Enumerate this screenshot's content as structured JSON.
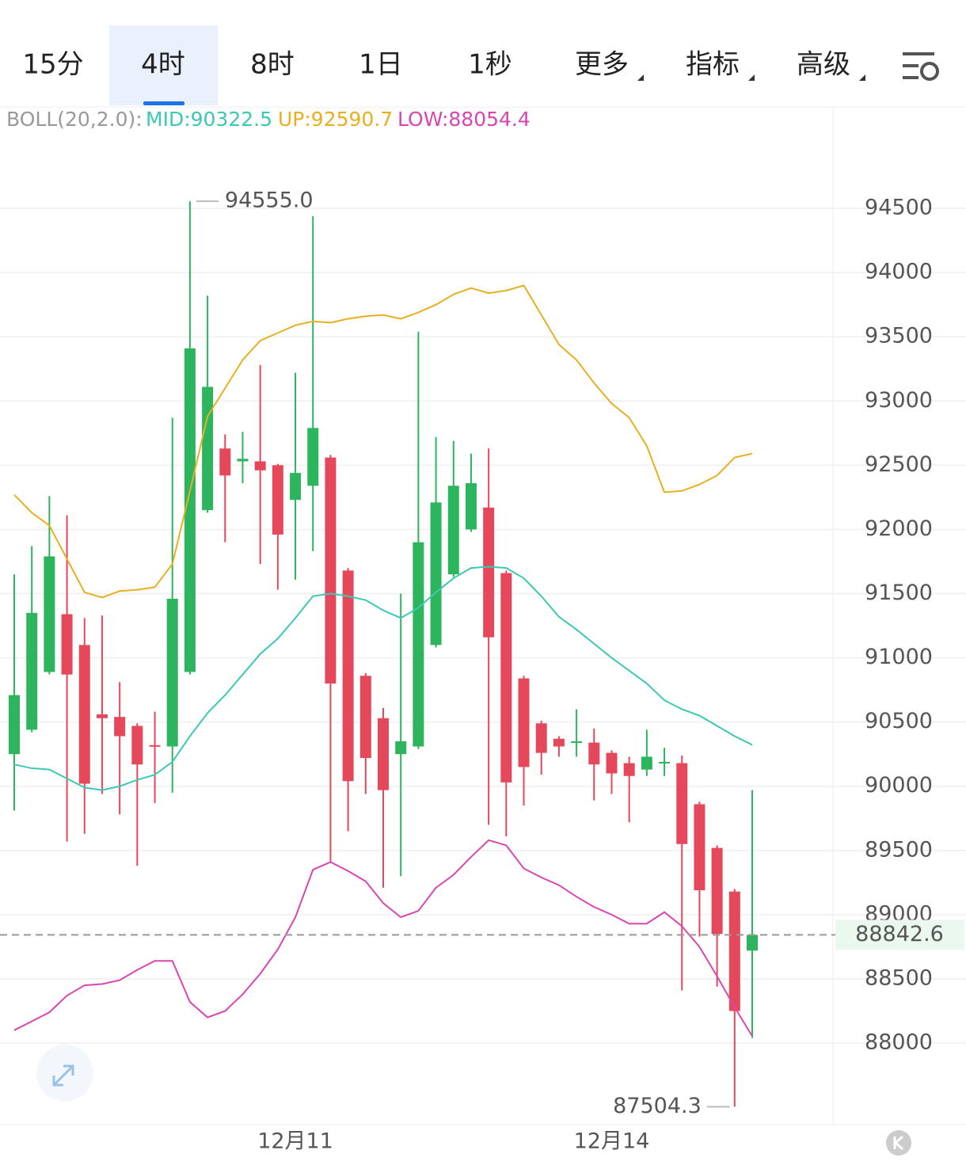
{
  "tabs": [
    "15分",
    "4时",
    "8时",
    "1日",
    "1秒",
    "更多",
    "指标",
    "高级"
  ],
  "active_tab": 1,
  "boll_legend": {
    "name": "BOLL(20,2.0):",
    "mid": "MID:90322.5",
    "up": "UP:92590.7",
    "low": "LOW:88054.4"
  },
  "chart_data": {
    "type": "candlestick",
    "categories": [
      null,
      null,
      null,
      null,
      null,
      null,
      null,
      null,
      null,
      null,
      null,
      null,
      null,
      null,
      null,
      null,
      "12月11",
      null,
      null,
      null,
      null,
      null,
      null,
      null,
      null,
      null,
      null,
      null,
      null,
      null,
      null,
      null,
      null,
      null,
      "12月14",
      null,
      null,
      null,
      null,
      null,
      null,
      null,
      null
    ],
    "open": [
      90250,
      90440,
      90890,
      91340,
      91100,
      90560,
      90540,
      90470,
      90320,
      90310,
      90890,
      92150,
      92630,
      92530,
      92530,
      92500,
      92230,
      92340,
      92560,
      91680,
      90860,
      90530,
      90250,
      90310,
      91100,
      91650,
      92000,
      92170,
      91660,
      90840,
      90490,
      90370,
      90340,
      90340,
      90260,
      90180,
      90130,
      90180,
      90180,
      89860,
      89520,
      89180,
      88720
    ],
    "high": [
      91650,
      91870,
      92260,
      92110,
      91310,
      91330,
      90810,
      90490,
      90580,
      92870,
      94555,
      93820,
      92740,
      92760,
      93280,
      92510,
      93220,
      94440,
      92580,
      91700,
      90880,
      90610,
      91500,
      93540,
      92720,
      92690,
      92590,
      92630,
      91680,
      90860,
      90510,
      90390,
      90600,
      90450,
      90280,
      90230,
      90440,
      90300,
      90240,
      89880,
      89540,
      89200,
      89970
    ],
    "low": [
      89810,
      90420,
      90870,
      89570,
      89630,
      89940,
      89780,
      89380,
      89870,
      89950,
      90870,
      92130,
      91900,
      92360,
      91730,
      91530,
      91610,
      91830,
      89410,
      89650,
      89940,
      89210,
      89300,
      90290,
      91080,
      91630,
      91980,
      89700,
      89610,
      89850,
      90090,
      90230,
      90230,
      89890,
      89940,
      89720,
      90080,
      90080,
      88410,
      88830,
      88440,
      87504.3,
      88040
    ],
    "close": [
      90710,
      91350,
      91790,
      90870,
      90020,
      90530,
      90390,
      90170,
      90310,
      91460,
      93410,
      93110,
      92420,
      92550,
      92460,
      91960,
      92440,
      92790,
      90800,
      90040,
      90220,
      89970,
      90350,
      91900,
      92210,
      92340,
      92360,
      91160,
      90030,
      90150,
      90260,
      90310,
      90350,
      90170,
      90100,
      90080,
      90230,
      90190,
      89550,
      89190,
      88850,
      88250,
      88842.6
    ],
    "up_color": "#2db55d",
    "down_color": "#e5485a",
    "series": [
      {
        "name": "UP",
        "color": "#e8b020",
        "values": [
          92270,
          92130,
          92030,
          91770,
          91510,
          91470,
          91520,
          91530,
          91550,
          91730,
          92300,
          92880,
          93100,
          93320,
          93470,
          93530,
          93590,
          93620,
          93610,
          93640,
          93660,
          93670,
          93640,
          93690,
          93750,
          93830,
          93880,
          93840,
          93860,
          93900,
          93670,
          93440,
          93320,
          93140,
          92980,
          92870,
          92650,
          92290,
          92300,
          92350,
          92420,
          92560,
          92590.7
        ]
      },
      {
        "name": "MID",
        "color": "#3cc8b4",
        "values": [
          90170,
          90140,
          90130,
          90060,
          89990,
          89970,
          90000,
          90050,
          90090,
          90190,
          90390,
          90570,
          90710,
          90870,
          91030,
          91150,
          91310,
          91480,
          91500,
          91480,
          91450,
          91370,
          91310,
          91390,
          91510,
          91620,
          91700,
          91710,
          91700,
          91620,
          91480,
          91320,
          91220,
          91110,
          91000,
          90900,
          90800,
          90670,
          90600,
          90550,
          90470,
          90390,
          90322.5
        ]
      },
      {
        "name": "LOW",
        "color": "#d946b0",
        "values": [
          88100,
          88170,
          88240,
          88370,
          88450,
          88460,
          88490,
          88570,
          88640,
          88640,
          88320,
          88200,
          88250,
          88380,
          88540,
          88730,
          88980,
          89350,
          89410,
          89340,
          89260,
          89090,
          88980,
          89030,
          89210,
          89310,
          89450,
          89580,
          89540,
          89360,
          89290,
          89230,
          89140,
          89060,
          89000,
          88930,
          88930,
          89020,
          88910,
          88750,
          88520,
          88280,
          88054.4
        ]
      }
    ],
    "ylim": [
      87365,
      95290
    ],
    "yticks": [
      88000,
      88500,
      89000,
      89500,
      90000,
      90500,
      91000,
      91500,
      92000,
      92500,
      93000,
      93500,
      94000,
      94500
    ],
    "grid": true,
    "annotations": [
      {
        "value": 94555,
        "label": "94555.0",
        "kind": "high"
      },
      {
        "value": 87504.3,
        "label": "87504.3",
        "kind": "low"
      }
    ],
    "last_price": {
      "value": 88842.6,
      "label": "88842.6"
    }
  }
}
